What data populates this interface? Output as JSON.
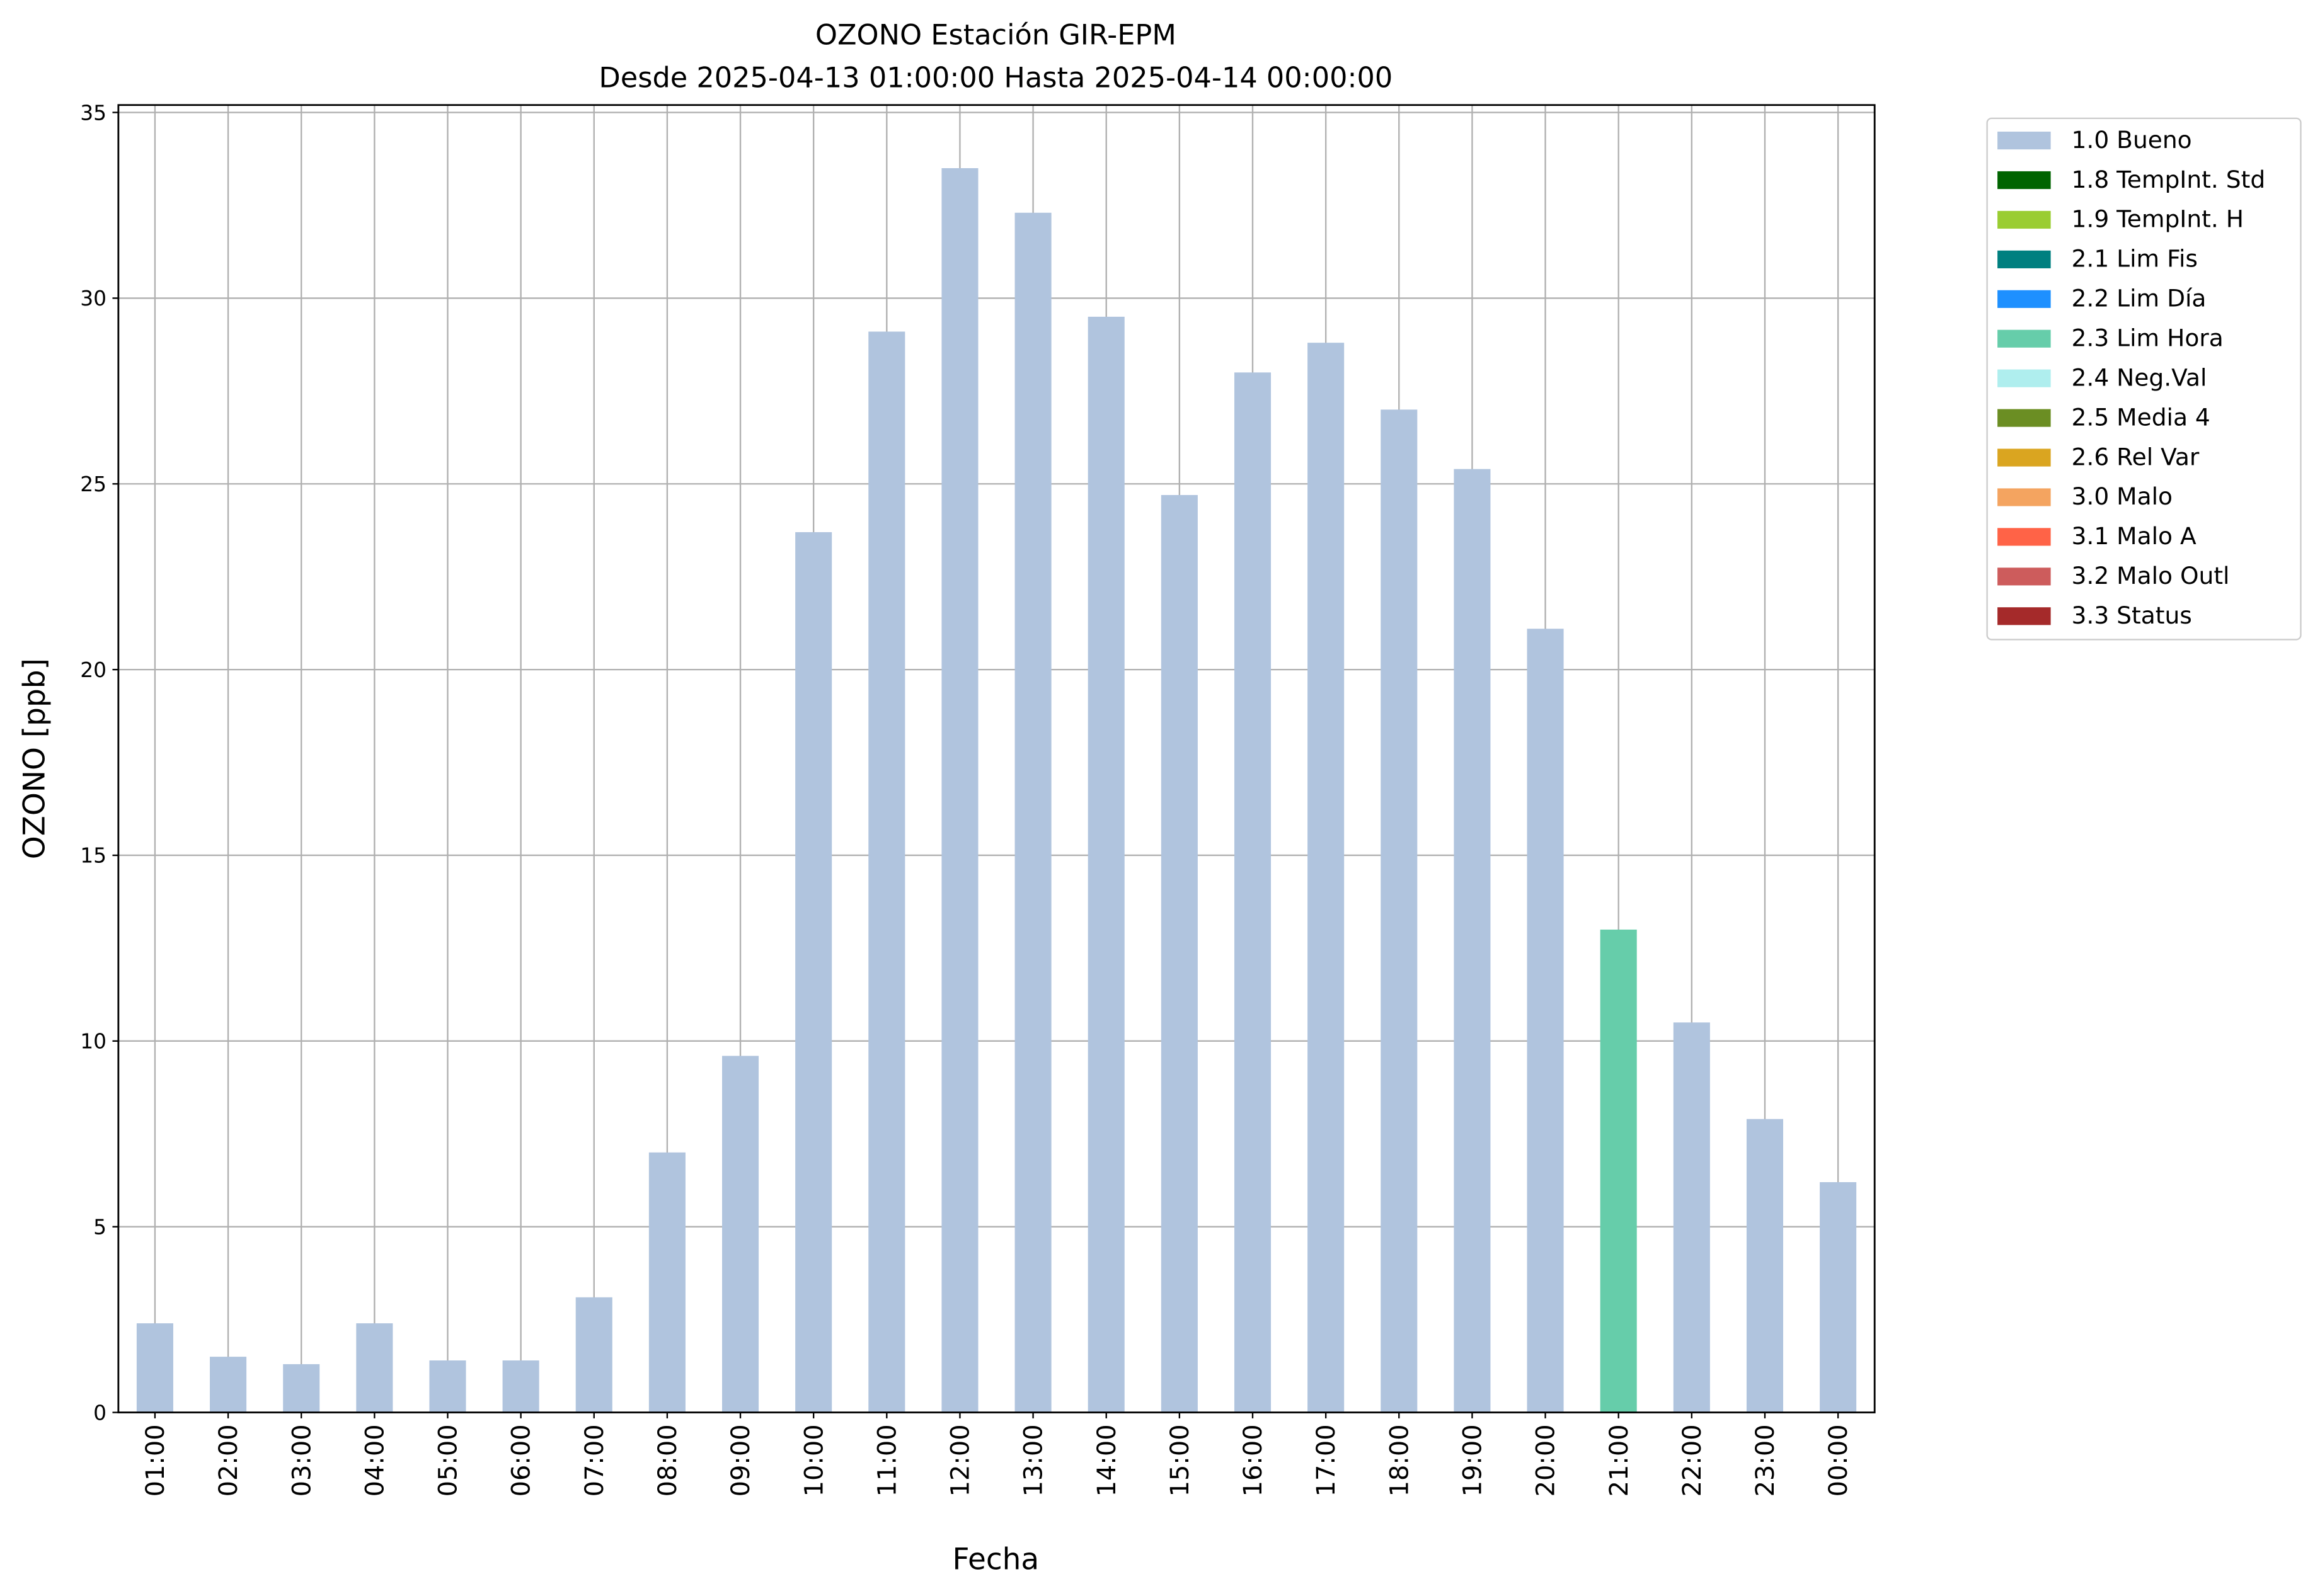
{
  "chart_data": {
    "type": "bar",
    "stacked": true,
    "title": "OZONO Estación GIR-EPM",
    "subtitle": "Desde 2025-04-13 01:00:00 Hasta 2025-04-14 00:00:00",
    "x_label": "Fecha",
    "y_label": "OZONO [ppb]",
    "categories": [
      "01:00",
      "02:00",
      "03:00",
      "04:00",
      "05:00",
      "06:00",
      "07:00",
      "08:00",
      "09:00",
      "10:00",
      "11:00",
      "12:00",
      "13:00",
      "14:00",
      "15:00",
      "16:00",
      "17:00",
      "18:00",
      "19:00",
      "20:00",
      "21:00",
      "22:00",
      "23:00",
      "00:00"
    ],
    "ylim": [
      0,
      35.2
    ],
    "yticks": [
      0,
      5,
      10,
      15,
      20,
      25,
      30,
      35
    ],
    "grid": true,
    "legend_position": "outside-right",
    "series": [
      {
        "name": "1.0 Bueno",
        "color": "#b0c4de",
        "values": [
          2.4,
          1.5,
          1.3,
          2.4,
          1.4,
          1.4,
          3.1,
          7.0,
          9.6,
          23.7,
          29.1,
          33.5,
          32.3,
          29.5,
          24.7,
          28.0,
          28.8,
          27.0,
          25.4,
          21.1,
          0,
          10.5,
          7.9,
          6.2
        ]
      },
      {
        "name": "1.8 TempInt. Std",
        "color": "#006400",
        "values": [
          0,
          0,
          0,
          0,
          0,
          0,
          0,
          0,
          0,
          0,
          0,
          0,
          0,
          0,
          0,
          0,
          0,
          0,
          0,
          0,
          0,
          0,
          0,
          0
        ]
      },
      {
        "name": "1.9 TempInt. H",
        "color": "#9acd32",
        "values": [
          0,
          0,
          0,
          0,
          0,
          0,
          0,
          0,
          0,
          0,
          0,
          0,
          0,
          0,
          0,
          0,
          0,
          0,
          0,
          0,
          0,
          0,
          0,
          0
        ]
      },
      {
        "name": "2.1 Lim Fis",
        "color": "#008080",
        "values": [
          0,
          0,
          0,
          0,
          0,
          0,
          0,
          0,
          0,
          0,
          0,
          0,
          0,
          0,
          0,
          0,
          0,
          0,
          0,
          0,
          0,
          0,
          0,
          0
        ]
      },
      {
        "name": "2.2 Lim Día",
        "color": "#1e90ff",
        "values": [
          0,
          0,
          0,
          0,
          0,
          0,
          0,
          0,
          0,
          0,
          0,
          0,
          0,
          0,
          0,
          0,
          0,
          0,
          0,
          0,
          0,
          0,
          0,
          0
        ]
      },
      {
        "name": "2.3 Lim Hora",
        "color": "#66cdaa",
        "values": [
          0,
          0,
          0,
          0,
          0,
          0,
          0,
          0,
          0,
          0,
          0,
          0,
          0,
          0,
          0,
          0,
          0,
          0,
          0,
          0,
          13.0,
          0,
          0,
          0
        ]
      },
      {
        "name": "2.4 Neg.Val",
        "color": "#afeeee",
        "values": [
          0,
          0,
          0,
          0,
          0,
          0,
          0,
          0,
          0,
          0,
          0,
          0,
          0,
          0,
          0,
          0,
          0,
          0,
          0,
          0,
          0,
          0,
          0,
          0
        ]
      },
      {
        "name": "2.5 Media 4",
        "color": "#6b8e23",
        "values": [
          0,
          0,
          0,
          0,
          0,
          0,
          0,
          0,
          0,
          0,
          0,
          0,
          0,
          0,
          0,
          0,
          0,
          0,
          0,
          0,
          0,
          0,
          0,
          0
        ]
      },
      {
        "name": "2.6 Rel Var",
        "color": "#daa520",
        "values": [
          0,
          0,
          0,
          0,
          0,
          0,
          0,
          0,
          0,
          0,
          0,
          0,
          0,
          0,
          0,
          0,
          0,
          0,
          0,
          0,
          0,
          0,
          0,
          0
        ]
      },
      {
        "name": "3.0 Malo",
        "color": "#f4a460",
        "values": [
          0,
          0,
          0,
          0,
          0,
          0,
          0,
          0,
          0,
          0,
          0,
          0,
          0,
          0,
          0,
          0,
          0,
          0,
          0,
          0,
          0,
          0,
          0,
          0
        ]
      },
      {
        "name": "3.1 Malo A",
        "color": "#ff6347",
        "values": [
          0,
          0,
          0,
          0,
          0,
          0,
          0,
          0,
          0,
          0,
          0,
          0,
          0,
          0,
          0,
          0,
          0,
          0,
          0,
          0,
          0,
          0,
          0,
          0
        ]
      },
      {
        "name": "3.2 Malo Outl",
        "color": "#cd5c5c",
        "values": [
          0,
          0,
          0,
          0,
          0,
          0,
          0,
          0,
          0,
          0,
          0,
          0,
          0,
          0,
          0,
          0,
          0,
          0,
          0,
          0,
          0,
          0,
          0,
          0
        ]
      },
      {
        "name": "3.3 Status",
        "color": "#a52a2a",
        "values": [
          0,
          0,
          0,
          0,
          0,
          0,
          0,
          0,
          0,
          0,
          0,
          0,
          0,
          0,
          0,
          0,
          0,
          0,
          0,
          0,
          0,
          0,
          0,
          0
        ]
      }
    ]
  }
}
